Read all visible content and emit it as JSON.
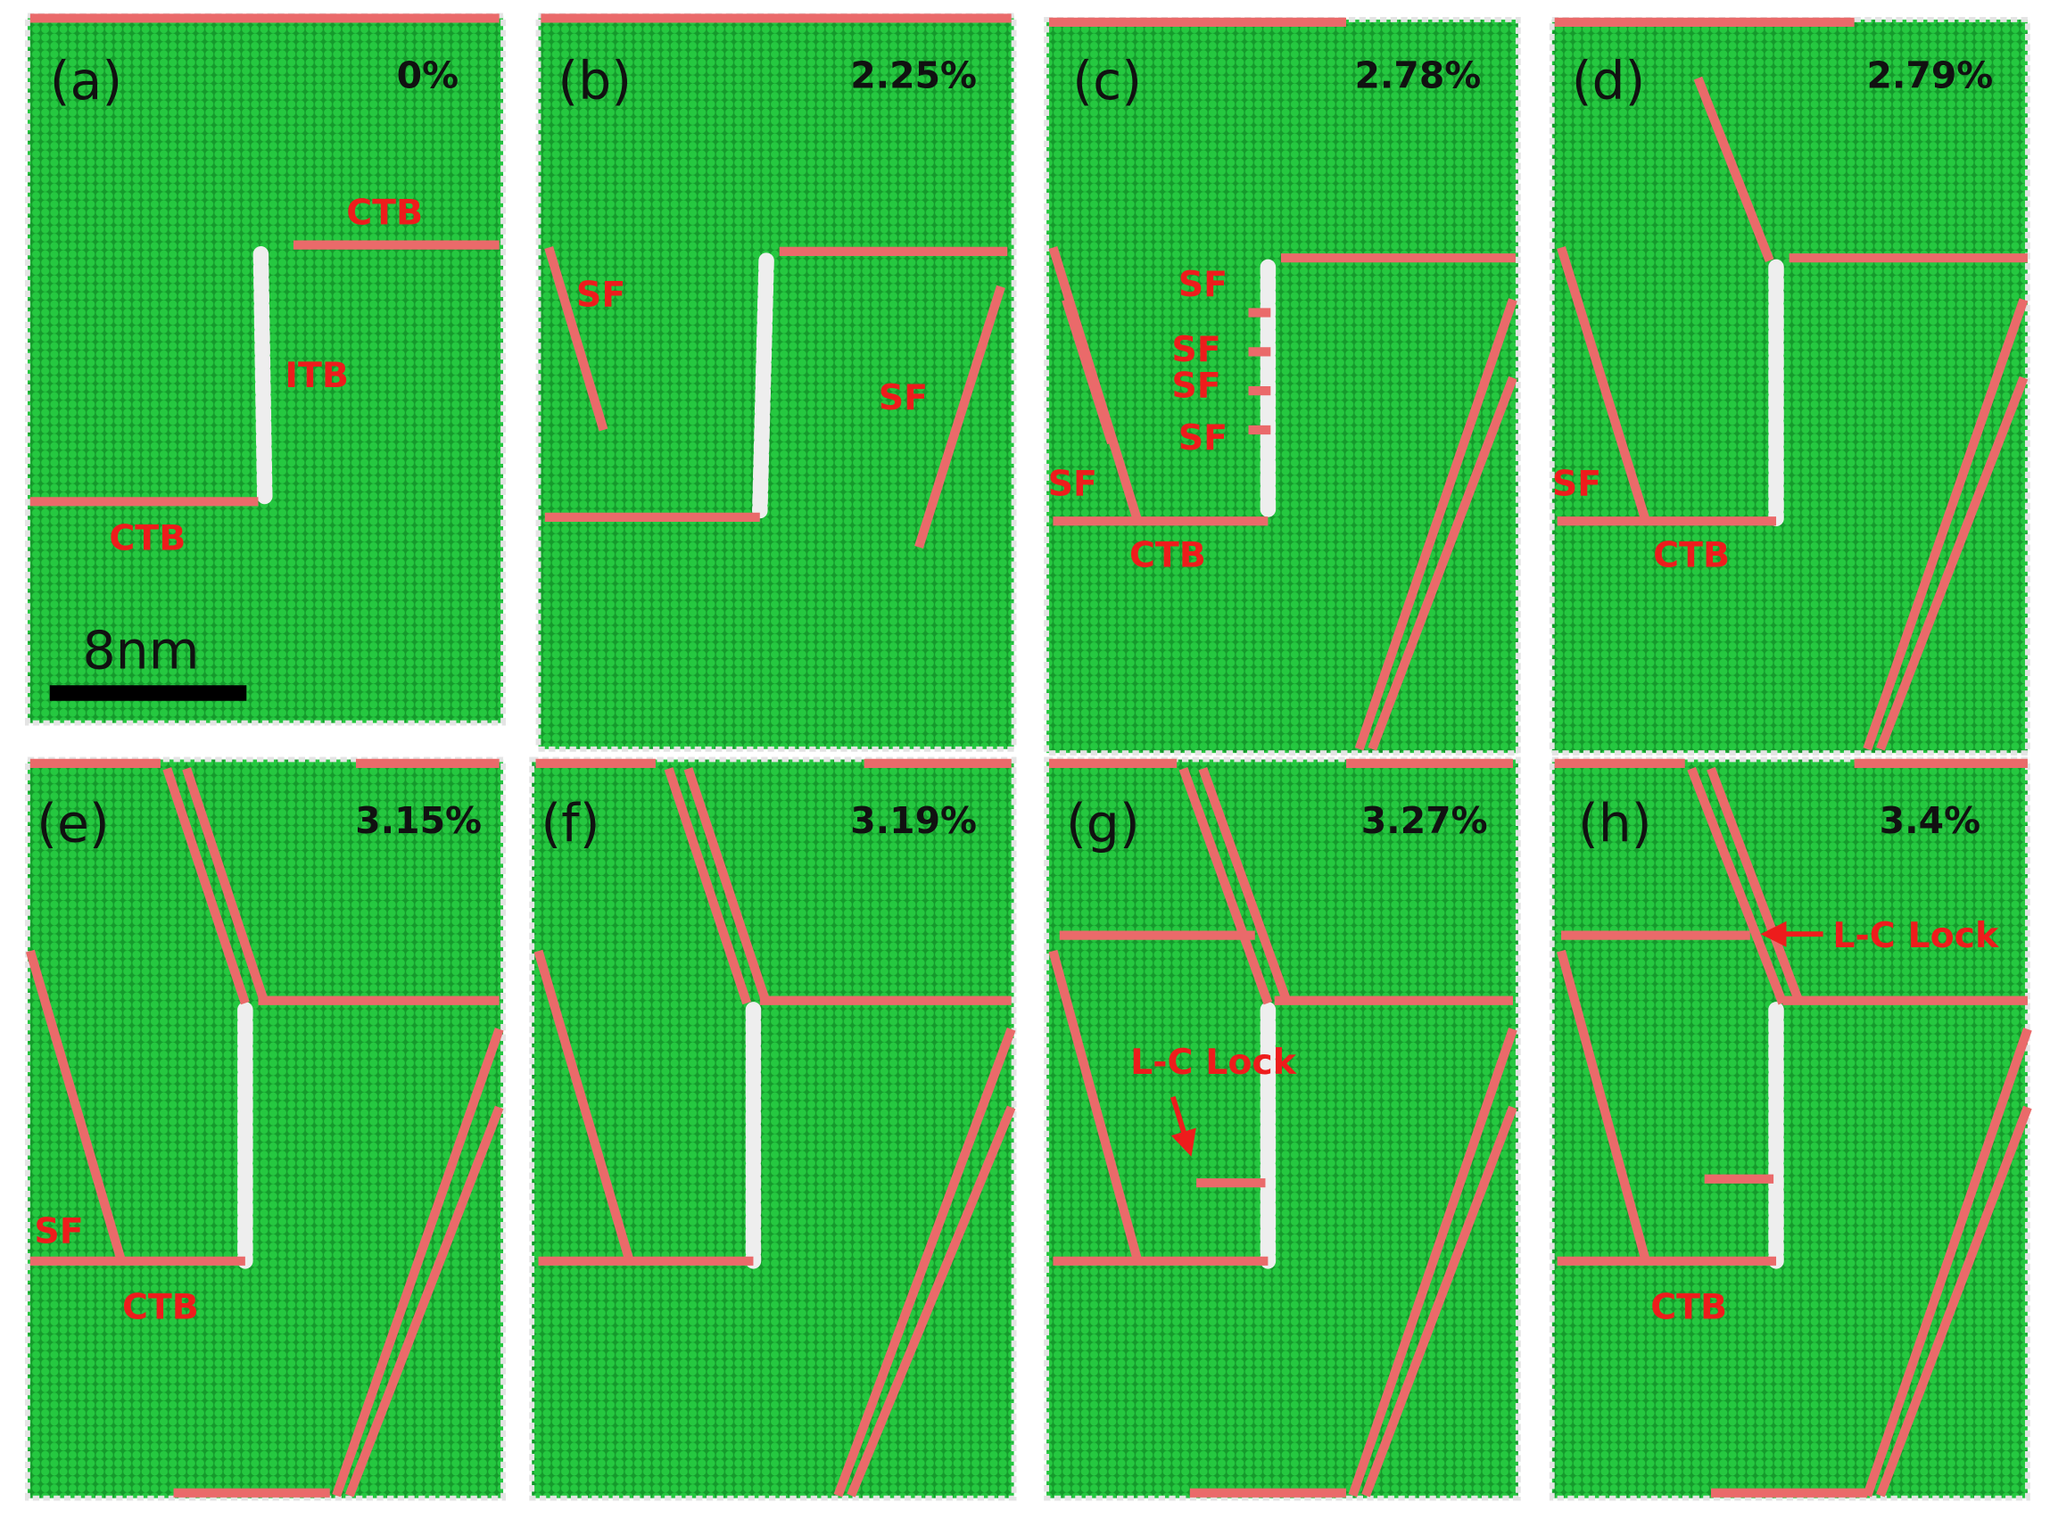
{
  "panels": [
    {
      "label": "(a)",
      "strain": "0%",
      "annotations": [
        "CTB",
        "ITB",
        "CTB"
      ]
    },
    {
      "label": "(b)",
      "strain": "2.25%",
      "annotations": [
        "SF",
        "SF"
      ]
    },
    {
      "label": "(c)",
      "strain": "2.78%",
      "annotations": [
        "SF",
        "SF",
        "SF",
        "SF",
        "SF",
        "CTB"
      ]
    },
    {
      "label": "(d)",
      "strain": "2.79%",
      "annotations": [
        "SF",
        "CTB"
      ]
    },
    {
      "label": "(e)",
      "strain": "3.15%",
      "annotations": [
        "SF",
        "CTB"
      ]
    },
    {
      "label": "(f)",
      "strain": "3.19%"
    },
    {
      "label": "(g)",
      "strain": "3.27%",
      "annotations": [
        "L-C Lock"
      ]
    },
    {
      "label": "(h)",
      "strain": "3.4%",
      "annotations": [
        "L-C Lock",
        "CTB"
      ]
    }
  ],
  "scale_bar": "8nm"
}
